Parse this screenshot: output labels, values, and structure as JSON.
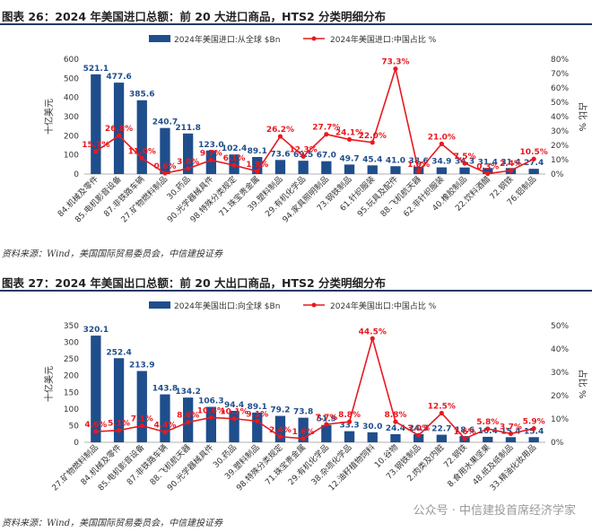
{
  "figures": [
    {
      "title": "图表 26：2024 年美国进口总额：前 20 大进口商品，HTS2 分类明细分布",
      "source": "资料来源：Wind，美国国际贸易委员会，中信建投证券"
    },
    {
      "title": "图表 27：2024 年美国出口总额：前 20 大出口商品，HTS2 分类明细分布",
      "source": "资料来源：Wind，美国国际贸易委员会，中信建投证券"
    }
  ],
  "watermark": "公众号 · 中信建投首席经济学家",
  "colors": {
    "bar": "#1f4e8c",
    "line": "#e8191f",
    "label_bar": "#1f4e8c",
    "label_line": "#e8191f",
    "title_rule": "#1f3a66"
  },
  "chart_data": [
    {
      "type": "bar",
      "categories": [
        "84.机械及零件",
        "85.电机影音设备",
        "87.非铁路车辆",
        "27.矿物燃料制品",
        "30.药品",
        "90.光学器械具件",
        "98.特殊分类规定",
        "71.珠宝贵金属",
        "39.塑料制品",
        "29.有机化学品",
        "94.家具照明制品",
        "73.钢铁制品",
        "61.针织服装",
        "95.玩具及配件",
        "88.飞机航天器",
        "62.非针织服装",
        "40.橡胶制品",
        "22.饮料酒醋",
        "72.钢铁",
        "76.铝制品"
      ],
      "series": [
        {
          "name": "2024年美国进口:从全球 $Bn",
          "axis": "left",
          "values": [
            521.1,
            477.6,
            385.6,
            240.7,
            211.8,
            123.0,
            102.4,
            89.1,
            73.6,
            69.5,
            67.0,
            49.7,
            45.4,
            41.0,
            38.6,
            34.9,
            34.3,
            31.4,
            31.4,
            27.4
          ]
        },
        {
          "name": "2024年美国进口:中国占比 %",
          "axis": "right",
          "type": "line",
          "values": [
            15.7,
            26.8,
            11.0,
            0.6,
            3.8,
            9.7,
            6.1,
            1.9,
            26.2,
            12.3,
            27.7,
            24.1,
            22.0,
            73.3,
            1.9,
            21.0,
            7.5,
            0.3,
            2.4,
            10.5
          ]
        }
      ],
      "ylabel": "十亿美元",
      "y2label": "占比 %",
      "ylim": [
        0,
        600
      ],
      "yticks": [
        0,
        100,
        200,
        300,
        400,
        500,
        600
      ],
      "y2lim": [
        0,
        80
      ],
      "y2ticks": [
        "0%",
        "10%",
        "20%",
        "30%",
        "40%",
        "50%",
        "60%",
        "70%",
        "80%"
      ],
      "legend": "top"
    },
    {
      "type": "bar",
      "categories": [
        "27.矿物燃料制品",
        "84.机械及零件",
        "85.电机影音设备",
        "87.非铁路车辆",
        "88.飞机航天器",
        "90.光学器械具件",
        "30.药品",
        "39.塑料制品",
        "98.特殊分类规定",
        "71.珠宝贵金属",
        "29.有机化学品",
        "38.杂项化学品",
        "12.油籽植物饲料",
        "10.谷物",
        "73.钢铁制品",
        "2.肉类及内脏",
        "72.钢铁",
        "8.食用水果坚果",
        "48.纸及纸制品",
        "33.精油化妆用品"
      ],
      "series": [
        {
          "name": "2024年美国出口:向全球 $Bn",
          "axis": "left",
          "values": [
            320.1,
            252.4,
            213.9,
            143.8,
            134.2,
            106.3,
            94.4,
            89.1,
            79.2,
            73.8,
            51.9,
            33.3,
            30.0,
            24.4,
            24.3,
            22.7,
            18.6,
            16.4,
            15.4,
            15.4
          ]
        },
        {
          "name": "2024年美国出口:中国占比 %",
          "axis": "right",
          "type": "line",
          "values": [
            4.6,
            5.1,
            7.1,
            4.4,
            8.6,
            10.6,
            10.1,
            9.1,
            2.4,
            1.6,
            7.7,
            8.8,
            44.5,
            8.8,
            3.0,
            12.5,
            1.6,
            5.8,
            3.7,
            5.9
          ]
        }
      ],
      "ylabel": "十亿美元",
      "y2label": "占比 %",
      "ylim": [
        0,
        350
      ],
      "yticks": [
        0,
        50,
        100,
        150,
        200,
        250,
        300,
        350
      ],
      "y2lim": [
        0,
        50
      ],
      "y2ticks": [
        "0%",
        "10%",
        "20%",
        "30%",
        "40%",
        "50%"
      ],
      "legend": "top"
    }
  ]
}
